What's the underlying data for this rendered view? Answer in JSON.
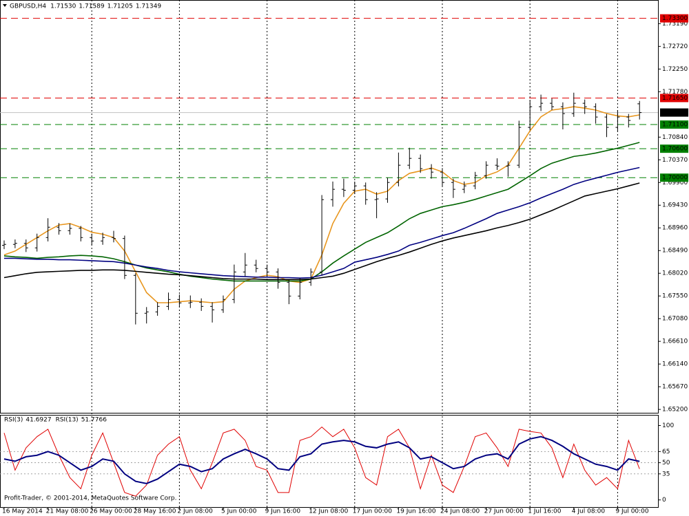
{
  "chart_data": [
    {
      "type": "ohlc",
      "symbol": "GBPUSD,H4",
      "quote": [
        {
          "value": 1.7153,
          "label": "1.71530"
        },
        {
          "value": 1.71589,
          "label": "1.71589"
        },
        {
          "value": 1.71205,
          "label": "1.71205"
        },
        {
          "value": 1.71349,
          "label": "1.71349"
        }
      ],
      "categories": [
        "16 May 2014",
        null,
        null,
        null,
        "21 May 08:00",
        null,
        null,
        null,
        "26 May 00:00",
        null,
        null,
        null,
        "28 May 16:00",
        null,
        null,
        null,
        "2 Jun 08:00",
        null,
        null,
        null,
        "5 Jun 00:00",
        null,
        null,
        null,
        "9 Jun 16:00",
        null,
        null,
        null,
        "12 Jun 08:00",
        null,
        null,
        null,
        "17 Jun 00:00",
        null,
        null,
        null,
        "19 Jun 16:00",
        null,
        null,
        null,
        "24 Jun 08:00",
        null,
        null,
        null,
        "27 Jun 00:00",
        null,
        null,
        null,
        "1 Jul 16:00",
        null,
        null,
        null,
        "4 Jul 08:00",
        null,
        null,
        null,
        "9 Jul 00:00",
        null,
        null
      ],
      "open": [
        1.686,
        1.68618,
        1.6864,
        1.68546,
        1.6876,
        1.68974,
        1.68903,
        1.6895,
        1.6876,
        1.68689,
        1.6876,
        1.6874,
        1.67976,
        1.67192,
        1.6722,
        1.67334,
        1.67477,
        1.67406,
        1.6742,
        1.67334,
        1.67263,
        1.67477,
        1.68047,
        1.6819,
        1.68119,
        1.68047,
        1.67833,
        1.67548,
        1.67833,
        1.68047,
        1.69545,
        1.69759,
        1.6974,
        1.6983,
        1.69545,
        1.6956,
        1.69901,
        1.70258,
        1.704,
        1.70186,
        1.70115,
        1.69901,
        1.69759,
        1.6983,
        1.70044,
        1.70258,
        1.7024,
        1.70258,
        1.71042,
        1.7147,
        1.71541,
        1.7147,
        1.71327,
        1.71541,
        1.7147,
        1.71256,
        1.71042,
        1.71256,
        1.7153
      ],
      "high": [
        1.687,
        1.6872,
        1.6872,
        1.6884,
        1.6916,
        1.6906,
        1.6905,
        1.69,
        1.6884,
        1.6886,
        1.689,
        1.688,
        1.6802,
        1.6732,
        1.6742,
        1.6762,
        1.6758,
        1.6756,
        1.675,
        1.6742,
        1.6756,
        1.682,
        1.6844,
        1.683,
        1.682,
        1.6812,
        1.679,
        1.6792,
        1.6812,
        1.6964,
        1.6992,
        1.6998,
        1.6992,
        1.699,
        1.697,
        1.7,
        1.7052,
        1.7062,
        1.7048,
        1.7028,
        1.702,
        1.6998,
        1.6992,
        1.7012,
        1.7034,
        1.704,
        1.7034,
        1.7118,
        1.716,
        1.7172,
        1.7164,
        1.7156,
        1.7176,
        1.7162,
        1.7154,
        1.7132,
        1.714,
        1.7132,
        1.71589
      ],
      "low": [
        1.6852,
        1.6854,
        1.6846,
        1.6847,
        1.6868,
        1.6882,
        1.6882,
        1.6868,
        1.686,
        1.6861,
        1.6866,
        1.679,
        1.6696,
        1.6698,
        1.6714,
        1.6726,
        1.6732,
        1.673,
        1.6724,
        1.67,
        1.672,
        1.674,
        1.6796,
        1.6804,
        1.6796,
        1.677,
        1.6738,
        1.6748,
        1.6776,
        1.6798,
        1.694,
        1.696,
        1.6966,
        1.6944,
        1.6916,
        1.6948,
        1.6982,
        1.7018,
        1.701,
        1.6998,
        1.6982,
        1.6958,
        1.6968,
        1.6976,
        1.6998,
        1.7016,
        1.7002,
        1.702,
        1.7098,
        1.7138,
        1.714,
        1.71,
        1.7126,
        1.7132,
        1.7112,
        1.7084,
        1.7096,
        1.7104,
        1.71205
      ],
      "close": [
        1.68618,
        1.6864,
        1.68546,
        1.6876,
        1.68974,
        1.68903,
        1.6895,
        1.6876,
        1.68689,
        1.6876,
        1.6874,
        1.67976,
        1.67192,
        1.6722,
        1.67334,
        1.67477,
        1.67406,
        1.6742,
        1.67334,
        1.67263,
        1.67477,
        1.68047,
        1.6819,
        1.68119,
        1.68047,
        1.67833,
        1.67548,
        1.67833,
        1.68047,
        1.69545,
        1.69759,
        1.6974,
        1.6983,
        1.69545,
        1.6956,
        1.69901,
        1.70258,
        1.704,
        1.70186,
        1.70115,
        1.69901,
        1.69759,
        1.6983,
        1.70044,
        1.70258,
        1.7024,
        1.70258,
        1.71042,
        1.7147,
        1.71541,
        1.7147,
        1.71327,
        1.71541,
        1.7147,
        1.71256,
        1.71042,
        1.71256,
        1.71185,
        1.71349
      ],
      "color": "#000000",
      "moving_averages": [
        {
          "color": "#e8961e",
          "values": [
            1.684,
            1.6848,
            1.6862,
            1.6876,
            1.689,
            1.6902,
            1.6905,
            1.6897,
            1.6887,
            1.6883,
            1.6876,
            1.6848,
            1.6805,
            1.6762,
            1.6741,
            1.6741,
            1.6743,
            1.6745,
            1.6743,
            1.6741,
            1.6743,
            1.6769,
            1.6786,
            1.6793,
            1.6798,
            1.6795,
            1.6786,
            1.6783,
            1.679,
            1.684,
            1.6905,
            1.6947,
            1.6972,
            1.6976,
            1.6966,
            1.6972,
            1.6994,
            1.7009,
            1.7014,
            1.702,
            1.7012,
            1.6994,
            1.6986,
            1.699,
            1.7004,
            1.7012,
            1.7026,
            1.7061,
            1.7097,
            1.7126,
            1.714,
            1.7143,
            1.7147,
            1.7144,
            1.714,
            1.7133,
            1.7128,
            1.7126,
            1.713
          ]
        },
        {
          "color": "#006400",
          "values": [
            1.6838,
            1.6836,
            1.6835,
            1.6833,
            1.6835,
            1.6836,
            1.6838,
            1.6839,
            1.6838,
            1.6836,
            1.6832,
            1.6826,
            1.6819,
            1.6813,
            1.6809,
            1.6805,
            1.68,
            1.6796,
            1.6793,
            1.679,
            1.6788,
            1.6786,
            1.6786,
            1.6786,
            1.6786,
            1.6786,
            1.6786,
            1.6786,
            1.679,
            1.6805,
            1.6823,
            1.6838,
            1.6852,
            1.6866,
            1.6876,
            1.6886,
            1.69,
            1.6915,
            1.6926,
            1.6933,
            1.694,
            1.6944,
            1.6949,
            1.6955,
            1.6962,
            1.6969,
            1.6976,
            1.699,
            1.7004,
            1.7019,
            1.703,
            1.7037,
            1.7044,
            1.7047,
            1.7051,
            1.7056,
            1.7061,
            1.7067,
            1.7073
          ]
        },
        {
          "color": "#000080",
          "values": [
            1.6833,
            1.6833,
            1.6832,
            1.6831,
            1.6831,
            1.683,
            1.683,
            1.6829,
            1.6828,
            1.6827,
            1.6826,
            1.6823,
            1.6819,
            1.6815,
            1.6812,
            1.6808,
            1.6805,
            1.6803,
            1.6801,
            1.6799,
            1.6797,
            1.6796,
            1.6795,
            1.6794,
            1.6794,
            1.6793,
            1.6793,
            1.6792,
            1.6793,
            1.6798,
            1.6805,
            1.6812,
            1.6825,
            1.683,
            1.6835,
            1.6841,
            1.6848,
            1.686,
            1.6866,
            1.6873,
            1.688,
            1.6886,
            1.6895,
            1.6905,
            1.6915,
            1.6926,
            1.6933,
            1.694,
            1.6948,
            1.6958,
            1.6967,
            1.6976,
            1.6986,
            1.6993,
            1.6999,
            1.7005,
            1.7011,
            1.7016,
            1.7021
          ]
        },
        {
          "color": "#000000",
          "values": [
            1.6793,
            1.6797,
            1.6801,
            1.6804,
            1.6805,
            1.6806,
            1.6807,
            1.6808,
            1.6808,
            1.6809,
            1.6809,
            1.6808,
            1.6806,
            1.6804,
            1.6802,
            1.68,
            1.6799,
            1.6797,
            1.6795,
            1.6793,
            1.6791,
            1.679,
            1.679,
            1.679,
            1.6789,
            1.6789,
            1.6789,
            1.6789,
            1.679,
            1.6793,
            1.6796,
            1.6802,
            1.681,
            1.6818,
            1.6826,
            1.6833,
            1.6839,
            1.6846,
            1.6854,
            1.6862,
            1.6869,
            1.6875,
            1.688,
            1.6885,
            1.689,
            1.6896,
            1.6901,
            1.6907,
            1.6914,
            1.6923,
            1.6932,
            1.6942,
            1.6952,
            1.6962,
            1.6967,
            1.6972,
            1.6977,
            1.6983,
            1.6989
          ]
        }
      ],
      "ylim": [
        1.6513,
        1.7368
      ],
      "yticks": [
        {
          "value": 1.7319,
          "label": "1.73190"
        },
        {
          "value": 1.7272,
          "label": "1.72720"
        },
        {
          "value": 1.7225,
          "label": "1.72250"
        },
        {
          "value": 1.7178,
          "label": "1.71780"
        },
        {
          "value": 1.7084,
          "label": "1.70840"
        },
        {
          "value": 1.7037,
          "label": "1.70370"
        },
        {
          "value": 1.699,
          "label": "1.69900"
        },
        {
          "value": 1.6943,
          "label": "1.69430"
        },
        {
          "value": 1.6896,
          "label": "1.68960"
        },
        {
          "value": 1.6849,
          "label": "1.68490"
        },
        {
          "value": 1.6802,
          "label": "1.68020"
        },
        {
          "value": 1.6755,
          "label": "1.67550"
        },
        {
          "value": 1.6708,
          "label": "1.67080"
        },
        {
          "value": 1.6661,
          "label": "1.66610"
        },
        {
          "value": 1.6614,
          "label": "1.66140"
        },
        {
          "value": 1.6567,
          "label": "1.65670"
        },
        {
          "value": 1.652,
          "label": "1.65200"
        }
      ],
      "levels": [
        {
          "value": 1.733,
          "label": "1.73300",
          "color": "#e00000"
        },
        {
          "value": 1.7165,
          "label": "1.71650",
          "color": "#e00000"
        },
        {
          "value": 1.711,
          "label": "1.71100",
          "color": "#008000"
        },
        {
          "value": 1.706,
          "label": "1.70600",
          "color": "#008000"
        },
        {
          "value": 1.7,
          "label": "1.70000",
          "color": "#008000"
        }
      ],
      "current_price": {
        "value": 1.71349,
        "label": "1.71349"
      },
      "copyright": "Profit-Trader, © 2001-2014, MetaQuotes Software Corp."
    },
    {
      "type": "line",
      "series": [
        {
          "name": "RSI(3)",
          "color": "#e00000",
          "values": [
            90,
            40,
            70,
            85,
            95,
            60,
            30,
            15,
            60,
            90,
            50,
            10,
            5,
            20,
            60,
            75,
            85,
            40,
            15,
            50,
            90,
            95,
            80,
            45,
            40,
            10,
            10,
            80,
            85,
            98,
            85,
            95,
            70,
            30,
            20,
            85,
            95,
            70,
            15,
            60,
            20,
            10,
            45,
            85,
            90,
            70,
            45,
            95,
            92,
            90,
            70,
            30,
            75,
            40,
            20,
            30,
            15,
            80,
            41.6927
          ]
        },
        {
          "name": "RSI(13)",
          "color": "#000080",
          "values": [
            55,
            52,
            58,
            60,
            65,
            60,
            50,
            40,
            45,
            55,
            52,
            35,
            25,
            22,
            28,
            38,
            48,
            45,
            38,
            42,
            55,
            62,
            68,
            62,
            55,
            42,
            40,
            58,
            62,
            75,
            78,
            80,
            78,
            72,
            70,
            75,
            78,
            70,
            55,
            58,
            50,
            42,
            45,
            55,
            60,
            62,
            55,
            75,
            82,
            85,
            80,
            72,
            62,
            55,
            48,
            45,
            40,
            55,
            51.7766
          ]
        }
      ],
      "ylim": [
        -10.5,
        114.3
      ],
      "yticks": [
        100,
        65,
        50,
        35,
        0
      ],
      "levels": [
        65,
        50,
        35
      ]
    }
  ]
}
